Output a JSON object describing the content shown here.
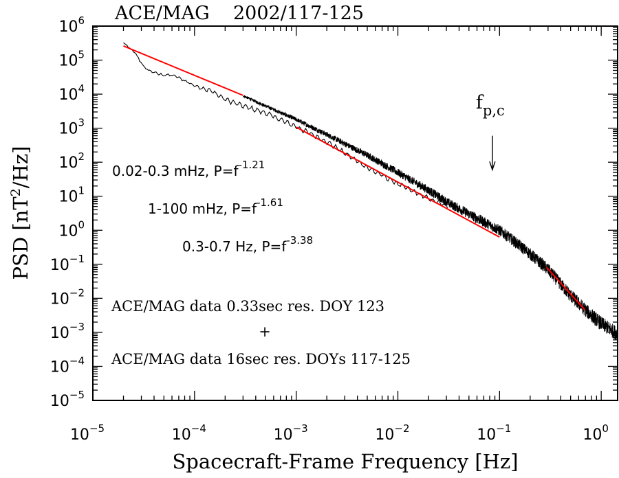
{
  "chart_data": {
    "type": "line",
    "title": "ACE/MAG    2002/117-125",
    "xlabel": "Spacecraft-Frame Frequency [Hz]",
    "ylabel": {
      "base": "PSD [nT",
      "sup": "2",
      "rest": "/Hz]"
    },
    "xscale": "log",
    "yscale": "log",
    "xlim": [
      1e-05,
      1.45
    ],
    "ylim": [
      1e-05,
      1000000.0
    ],
    "x_ticks": [
      {
        "base": "10",
        "exp": "-5",
        "value": 1e-05
      },
      {
        "base": "10",
        "exp": "-4",
        "value": 0.0001
      },
      {
        "base": "10",
        "exp": "-3",
        "value": 0.001
      },
      {
        "base": "10",
        "exp": "-2",
        "value": 0.01
      },
      {
        "base": "10",
        "exp": "-1",
        "value": 0.1
      },
      {
        "base": "10",
        "exp": "0",
        "value": 1
      }
    ],
    "y_ticks": [
      {
        "base": "10",
        "exp": "6",
        "value": 1000000.0
      },
      {
        "base": "10",
        "exp": "5",
        "value": 100000.0
      },
      {
        "base": "10",
        "exp": "4",
        "value": 10000.0
      },
      {
        "base": "10",
        "exp": "3",
        "value": 1000.0
      },
      {
        "base": "10",
        "exp": "2",
        "value": 100.0
      },
      {
        "base": "10",
        "exp": "1",
        "value": 10.0
      },
      {
        "base": "10",
        "exp": "0",
        "value": 1
      },
      {
        "base": "10",
        "exp": "-1",
        "value": 0.1
      },
      {
        "base": "10",
        "exp": "-2",
        "value": 0.01
      },
      {
        "base": "10",
        "exp": "-3",
        "value": 0.001
      },
      {
        "base": "10",
        "exp": "-4",
        "value": 0.0001
      },
      {
        "base": "10",
        "exp": "-5",
        "value": 1e-05
      }
    ],
    "grid": false,
    "series": [
      {
        "name": "ACE/MAG data 16sec res. DOYs 117-125",
        "color": "#000000",
        "x": [
          2e-05,
          2.6e-05,
          3.3e-05,
          4.5e-05,
          6.3e-05,
          8e-05,
          0.0001,
          0.00015,
          0.0002,
          0.0003,
          0.0005,
          0.001,
          0.002,
          0.005,
          0.01,
          0.02,
          0.031
        ],
        "y": [
          320000.0,
          160000.0,
          55000.0,
          38000.0,
          35000.0,
          25000.0,
          18000.0,
          12000.0,
          7000.0,
          4500.0,
          2800.0,
          1100.0,
          400.0,
          70.0,
          23.0,
          8.5,
          5.0
        ]
      },
      {
        "name": "ACE/MAG data 0.33sec res. DOY 123",
        "color": "#000000",
        "x": [
          0.0003,
          0.0005,
          0.001,
          0.002,
          0.005,
          0.01,
          0.02,
          0.031,
          0.05,
          0.1,
          0.15,
          0.2,
          0.3,
          0.5,
          0.7,
          1.0,
          1.45
        ],
        "y": [
          9000.0,
          4500.0,
          1800.0,
          650.0,
          160.0,
          50.0,
          15.0,
          6.5,
          3.0,
          1.0,
          0.4,
          0.2,
          0.07,
          0.012,
          0.0045,
          0.0018,
          0.0009
        ]
      }
    ],
    "fits": [
      {
        "label_pre": "0.02-0.3 mHz, P=f",
        "exponent": "-1.21",
        "slope": -1.21,
        "x": [
          2e-05,
          0.0003
        ],
        "y": [
          260000.0,
          9200.0
        ],
        "color": "#ff0000"
      },
      {
        "label_pre": "1-100 mHz, P=f",
        "exponent": "-1.61",
        "slope": -1.61,
        "x": [
          0.001,
          0.1
        ],
        "y": [
          1070.0,
          0.63
        ],
        "color": "#ff0000"
      },
      {
        "label_pre": "0.3-0.7 Hz, P=f",
        "exponent": "-3.38",
        "slope": -3.38,
        "x": [
          0.29,
          0.69
        ],
        "y": [
          0.081,
          0.0046
        ],
        "color": "#ff0000"
      }
    ],
    "annotations": {
      "arrow_label_base": "f",
      "arrow_label_sub": "p,c",
      "arrow_x": 0.085,
      "arrow_y_from": 600.0,
      "arrow_y_to": 60.0,
      "legend_line1": "ACE/MAG data 0.33sec res. DOY 123",
      "legend_plus": "+",
      "legend_line2": "ACE/MAG data 16sec res. DOYs 117-125"
    }
  }
}
